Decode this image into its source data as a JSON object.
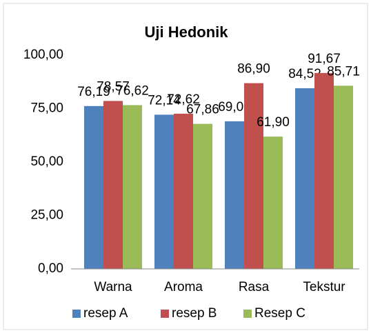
{
  "chart_data": {
    "type": "bar",
    "title": "Uji Hedonik",
    "categories": [
      "Warna",
      "Aroma",
      "Rasa",
      "Tekstur"
    ],
    "series": [
      {
        "name": "resep A",
        "color": "#4f81bd",
        "values": [
          76.19,
          72.14,
          69.05,
          84.52
        ],
        "value_labels": [
          "76,19",
          "72,14",
          "69,05",
          "84,52"
        ]
      },
      {
        "name": "resep B",
        "color": "#c0504d",
        "values": [
          78.57,
          72.62,
          86.9,
          91.67
        ],
        "value_labels": [
          "78,57",
          "72,62",
          "86,90",
          "91,67"
        ]
      },
      {
        "name": "Resep C",
        "color": "#9bbb59",
        "values": [
          76.62,
          67.86,
          61.9,
          85.71
        ],
        "value_labels": [
          "76,62",
          "67,86",
          "61,90",
          "85,71"
        ]
      }
    ],
    "ylim": [
      0,
      100
    ],
    "yticks": [
      {
        "value": 0,
        "label": "0,00"
      },
      {
        "value": 25,
        "label": "25,00"
      },
      {
        "value": 50,
        "label": "50,00"
      },
      {
        "value": 75,
        "label": "75,00"
      },
      {
        "value": 100,
        "label": "100,00"
      }
    ],
    "grid": false,
    "legend": "bottom"
  }
}
